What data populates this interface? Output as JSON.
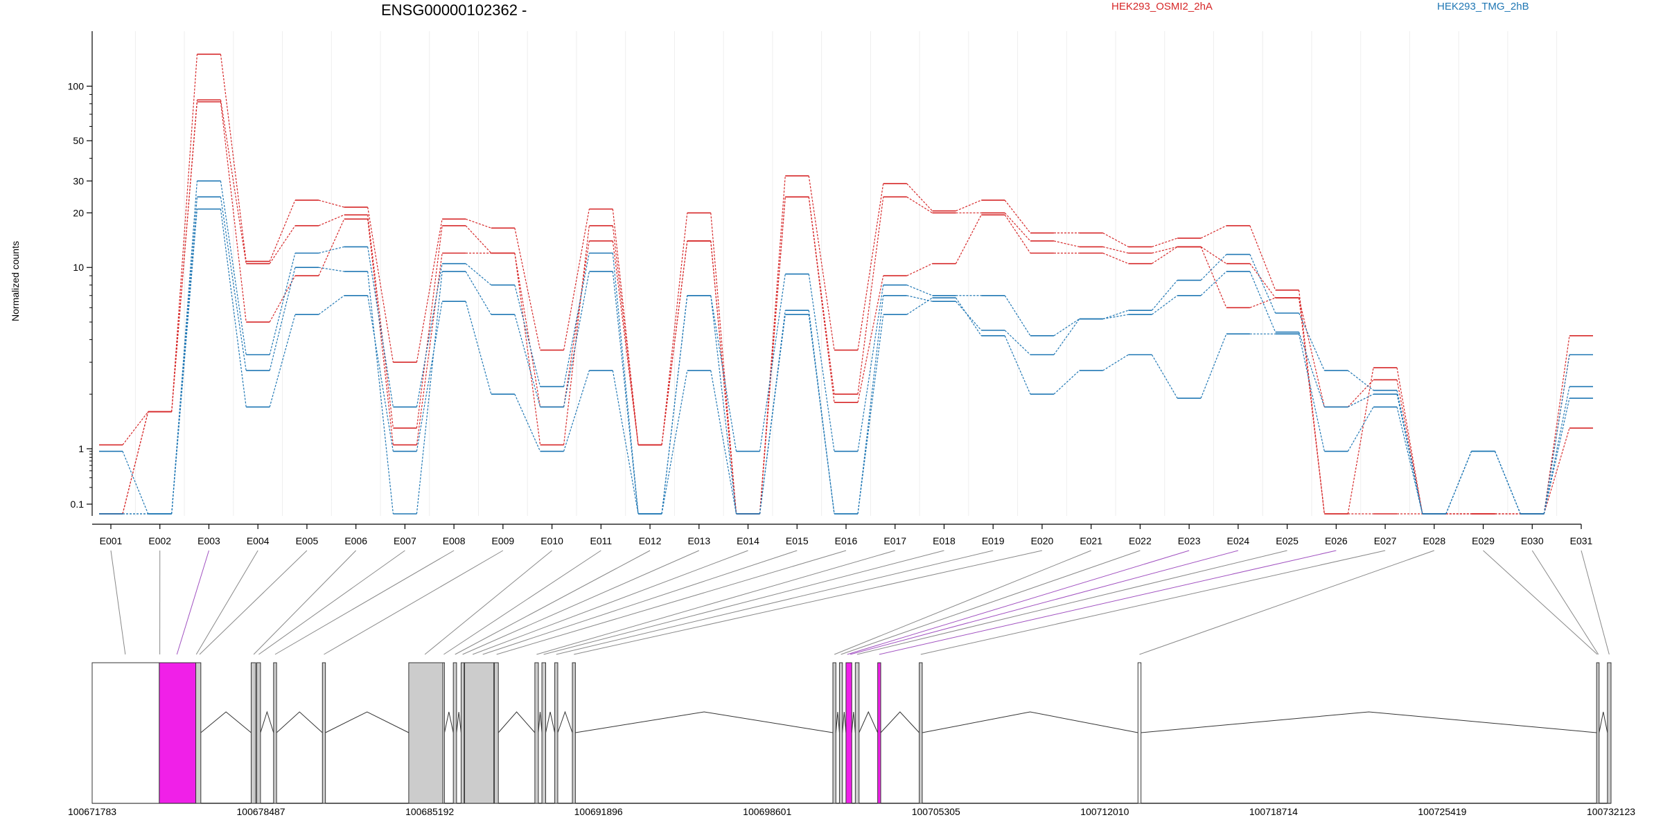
{
  "chart_data": {
    "type": "line",
    "title": "ENSG00000102362 -",
    "ylabel": "Normalized counts",
    "yscale": "log-like (pseudocount)",
    "ylim": [
      0.07,
      160
    ],
    "yticks": [
      {
        "value": 0.1,
        "label": "0.1"
      },
      {
        "value": 1,
        "label": "1"
      },
      {
        "value": 10,
        "label": "10"
      },
      {
        "value": 20,
        "label": "20"
      },
      {
        "value": 30,
        "label": "30"
      },
      {
        "value": 50,
        "label": "50"
      },
      {
        "value": 100,
        "label": "100"
      }
    ],
    "categories": [
      "E001",
      "E002",
      "E003",
      "E004",
      "E005",
      "E006",
      "E007",
      "E008",
      "E009",
      "E010",
      "E011",
      "E012",
      "E013",
      "E014",
      "E015",
      "E016",
      "E017",
      "E018",
      "E019",
      "E020",
      "E021",
      "E022",
      "E023",
      "E024",
      "E025",
      "E026",
      "E027",
      "E028",
      "E029",
      "E030",
      "E031"
    ],
    "legend": [
      {
        "label": "HEK293_OSMI2_2hA",
        "color": "#d62728"
      },
      {
        "label": "HEK293_TMG_2hB",
        "color": "#1f77b4"
      }
    ],
    "series": [
      {
        "group": "HEK293_OSMI2_2hA",
        "color": "#d62728",
        "values": [
          1.05,
          1.6,
          150,
          10.8,
          23.5,
          21.5,
          3.0,
          18.5,
          16.5,
          3.5,
          21.0,
          1.05,
          20.0,
          0.07,
          32.0,
          3.5,
          29.0,
          20.5,
          23.5,
          15.5,
          15.5,
          13.0,
          14.5,
          17.0,
          7.5,
          0.07,
          2.8,
          0.07,
          0.07,
          0.07,
          4.2
        ]
      },
      {
        "group": "HEK293_OSMI2_2hA",
        "color": "#d62728",
        "values": [
          0.07,
          1.6,
          84.0,
          10.5,
          17.0,
          19.5,
          1.3,
          17.0,
          12.0,
          1.05,
          17.0,
          1.05,
          14.0,
          0.07,
          24.5,
          2.0,
          24.5,
          20.0,
          20.0,
          14.0,
          13.0,
          12.0,
          13.0,
          10.5,
          6.8,
          1.7,
          2.4,
          0.07,
          0.07,
          0.07,
          3.3
        ]
      },
      {
        "group": "HEK293_OSMI2_2hA",
        "color": "#d62728",
        "values": [
          0.07,
          1.6,
          82.0,
          5.0,
          9.0,
          18.5,
          1.05,
          12.0,
          12.0,
          1.7,
          14.0,
          1.05,
          14.0,
          0.07,
          24.5,
          1.8,
          9.0,
          10.5,
          19.5,
          12.0,
          12.0,
          10.5,
          13.0,
          6.0,
          6.8,
          0.07,
          0.07,
          0.07,
          0.07,
          0.07,
          1.3
        ]
      },
      {
        "group": "HEK293_TMG_2hB",
        "color": "#1f77b4",
        "values": [
          0.9,
          0.07,
          30.0,
          3.3,
          12.0,
          13.0,
          1.7,
          10.5,
          8.0,
          2.2,
          12.0,
          0.07,
          7.0,
          0.9,
          9.2,
          0.9,
          8.0,
          7.0,
          7.0,
          4.2,
          5.2,
          5.8,
          8.5,
          11.8,
          5.6,
          2.7,
          2.1,
          0.07,
          0.9,
          0.07,
          3.3
        ]
      },
      {
        "group": "HEK293_TMG_2hB",
        "color": "#1f77b4",
        "values": [
          0.07,
          0.07,
          24.5,
          2.7,
          10.0,
          9.5,
          0.07,
          9.5,
          5.5,
          1.7,
          9.5,
          0.07,
          7.0,
          0.07,
          5.8,
          0.07,
          7.0,
          6.5,
          4.5,
          3.3,
          5.2,
          5.5,
          7.0,
          9.5,
          4.4,
          1.7,
          2.0,
          0.07,
          0.9,
          0.07,
          2.2
        ]
      },
      {
        "group": "HEK293_TMG_2hB",
        "color": "#1f77b4",
        "values": [
          0.07,
          0.07,
          21.0,
          1.7,
          5.5,
          7.0,
          0.9,
          6.5,
          2.0,
          0.9,
          2.7,
          0.07,
          2.7,
          0.07,
          5.5,
          0.07,
          5.5,
          6.8,
          4.2,
          2.0,
          2.7,
          3.3,
          1.9,
          4.3,
          4.3,
          0.9,
          1.7,
          0.07,
          0.9,
          0.07,
          1.9
        ]
      }
    ],
    "genomic_axis": {
      "ticks": [
        "100671783",
        "100678487",
        "100685192",
        "100691896",
        "100698601",
        "100705305",
        "100712010",
        "100718714",
        "100725419",
        "100732123"
      ],
      "start": 100671783,
      "end": 100732123
    },
    "gene_model": {
      "highlight_color": "#f020e8",
      "exons": [
        {
          "start": 100671783,
          "end": 100674450,
          "color": "#ffffff"
        },
        {
          "start": 100674450,
          "end": 100675900,
          "color": "#f020e8"
        },
        {
          "start": 100675900,
          "end": 100676100,
          "color": "#cccccc"
        },
        {
          "start": 100678100,
          "end": 100678280,
          "color": "#cccccc"
        },
        {
          "start": 100678320,
          "end": 100678470,
          "color": "#cccccc"
        },
        {
          "start": 100678990,
          "end": 100679110,
          "color": "#cccccc"
        },
        {
          "start": 100680930,
          "end": 100681050,
          "color": "#cccccc"
        },
        {
          "start": 100684360,
          "end": 100685720,
          "color": "#cccccc"
        },
        {
          "start": 100685720,
          "end": 100685780,
          "color": "#ffffff"
        },
        {
          "start": 100686130,
          "end": 100686260,
          "color": "#cccccc"
        },
        {
          "start": 100686440,
          "end": 100686560,
          "color": "#cccccc"
        },
        {
          "start": 100686580,
          "end": 100687740,
          "color": "#cccccc"
        },
        {
          "start": 100687760,
          "end": 100687920,
          "color": "#cccccc"
        },
        {
          "start": 100689370,
          "end": 100689510,
          "color": "#cccccc"
        },
        {
          "start": 100689650,
          "end": 100689800,
          "color": "#cccccc"
        },
        {
          "start": 100690160,
          "end": 100690280,
          "color": "#cccccc"
        },
        {
          "start": 100690860,
          "end": 100690980,
          "color": "#cccccc"
        },
        {
          "start": 100701210,
          "end": 100701330,
          "color": "#cccccc"
        },
        {
          "start": 100701470,
          "end": 100701590,
          "color": "#cccccc"
        },
        {
          "start": 100701730,
          "end": 100701960,
          "color": "#f020e8"
        },
        {
          "start": 100702100,
          "end": 100702250,
          "color": "#cccccc"
        },
        {
          "start": 100702990,
          "end": 100703110,
          "color": "#f020e8"
        },
        {
          "start": 100704640,
          "end": 100704760,
          "color": "#cccccc"
        },
        {
          "start": 100713330,
          "end": 100713450,
          "color": "#ffffff"
        },
        {
          "start": 100731550,
          "end": 100731650,
          "color": "#cccccc"
        },
        {
          "start": 100731980,
          "end": 100732123,
          "color": "#cccccc"
        }
      ],
      "connectors": [
        {
          "exon": "E001",
          "pos": 100673100,
          "color": "#888888"
        },
        {
          "exon": "E002",
          "pos": 100674470,
          "color": "#888888"
        },
        {
          "exon": "E003",
          "pos": 100675150,
          "color": "#a050c0"
        },
        {
          "exon": "E004",
          "pos": 100675920,
          "color": "#888888"
        },
        {
          "exon": "E005",
          "pos": 100676050,
          "color": "#888888"
        },
        {
          "exon": "E006",
          "pos": 100678200,
          "color": "#888888"
        },
        {
          "exon": "E007",
          "pos": 100678400,
          "color": "#888888"
        },
        {
          "exon": "E008",
          "pos": 100679050,
          "color": "#888888"
        },
        {
          "exon": "E009",
          "pos": 100680990,
          "color": "#888888"
        },
        {
          "exon": "E010",
          "pos": 100685000,
          "color": "#888888"
        },
        {
          "exon": "E011",
          "pos": 100685750,
          "color": "#888888"
        },
        {
          "exon": "E012",
          "pos": 100686200,
          "color": "#888888"
        },
        {
          "exon": "E013",
          "pos": 100686500,
          "color": "#888888"
        },
        {
          "exon": "E014",
          "pos": 100686900,
          "color": "#888888"
        },
        {
          "exon": "E015",
          "pos": 100687300,
          "color": "#888888"
        },
        {
          "exon": "E016",
          "pos": 100687850,
          "color": "#888888"
        },
        {
          "exon": "E017",
          "pos": 100689440,
          "color": "#888888"
        },
        {
          "exon": "E018",
          "pos": 100689720,
          "color": "#888888"
        },
        {
          "exon": "E019",
          "pos": 100690220,
          "color": "#888888"
        },
        {
          "exon": "E020",
          "pos": 100690920,
          "color": "#888888"
        },
        {
          "exon": "E021",
          "pos": 100701270,
          "color": "#888888"
        },
        {
          "exon": "E022",
          "pos": 100701530,
          "color": "#888888"
        },
        {
          "exon": "E023",
          "pos": 100701780,
          "color": "#a050c0"
        },
        {
          "exon": "E024",
          "pos": 100701900,
          "color": "#a050c0"
        },
        {
          "exon": "E025",
          "pos": 100702170,
          "color": "#888888"
        },
        {
          "exon": "E026",
          "pos": 100703050,
          "color": "#a050c0"
        },
        {
          "exon": "E027",
          "pos": 100704700,
          "color": "#888888"
        },
        {
          "exon": "E028",
          "pos": 100713390,
          "color": "#888888"
        },
        {
          "exon": "E029",
          "pos": 100731580,
          "color": "#888888"
        },
        {
          "exon": "E030",
          "pos": 100731620,
          "color": "#888888"
        },
        {
          "exon": "E031",
          "pos": 100732050,
          "color": "#888888"
        }
      ]
    }
  }
}
